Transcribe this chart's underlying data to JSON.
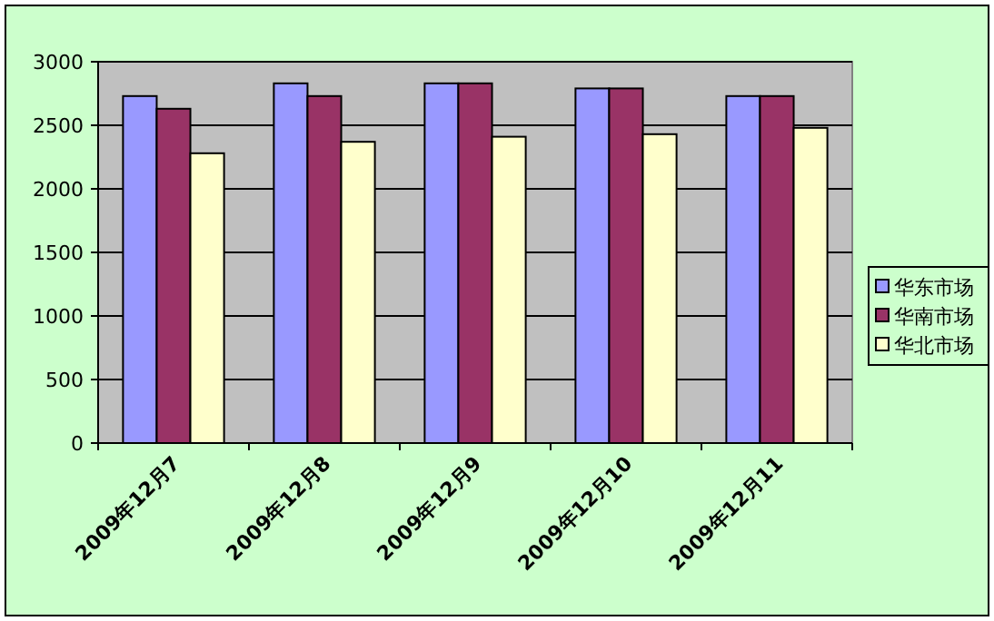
{
  "chart_data": {
    "type": "bar",
    "categories": [
      "2009年12月7",
      "2009年12月8",
      "2009年12月9",
      "2009年12月10",
      "2009年12月11"
    ],
    "series": [
      {
        "name": "华东市场",
        "color": "#9999ff",
        "values": [
          2730,
          2830,
          2830,
          2790,
          2730
        ]
      },
      {
        "name": "华南市场",
        "color": "#993366",
        "values": [
          2630,
          2730,
          2830,
          2790,
          2730
        ]
      },
      {
        "name": "华北市场",
        "color": "#ffffcc",
        "values": [
          2280,
          2370,
          2410,
          2430,
          2480
        ]
      }
    ],
    "ylim": [
      0,
      3000
    ],
    "yticks": [
      0,
      500,
      1000,
      1500,
      2000,
      2500,
      3000
    ],
    "grid": "y",
    "legend": "right"
  }
}
